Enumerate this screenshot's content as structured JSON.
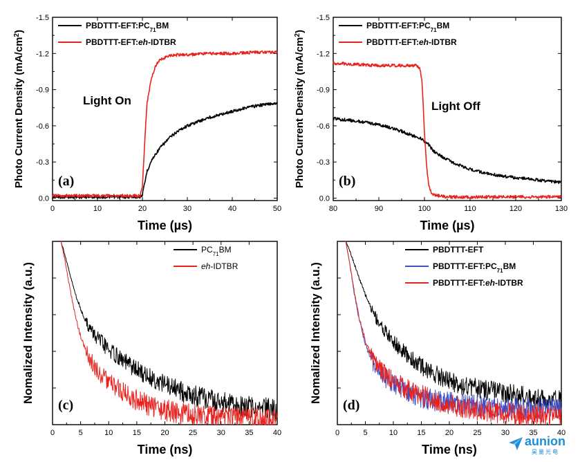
{
  "watermark": {
    "text": "aunion",
    "subtext": "昊量光电",
    "color": "#1d8fd6"
  },
  "colors": {
    "black": "#000000",
    "red": "#e8231f",
    "blue": "#3f4fc6"
  },
  "chart_data": [
    {
      "id": "a",
      "type": "line",
      "panel_label": "(a)",
      "annotation": "Light On",
      "xlabel": "Time (µs)",
      "ylabel": "Photo Current Density (mA/cm²)",
      "xlim": [
        0,
        50
      ],
      "ylim": [
        0.02,
        -1.5
      ],
      "y_inverted": true,
      "xticks": [
        0,
        10,
        20,
        30,
        40,
        50
      ],
      "yticks": [
        0.0,
        -0.3,
        -0.6,
        -0.9,
        -1.2,
        -1.5
      ],
      "ytick_labels": [
        "0.0",
        "-0.3",
        "-0.6",
        "-0.9",
        "-1.2",
        "-1.5"
      ],
      "legend_position": "top-left",
      "series": [
        {
          "name_parts": [
            "PBDTTT-EFT:PC",
            "71",
            "BM"
          ],
          "color": "#000000",
          "x": [
            0,
            19.5,
            20,
            20.5,
            21,
            22,
            23,
            24,
            26,
            28,
            30,
            32,
            35,
            38,
            40,
            43,
            46,
            50
          ],
          "y": [
            -0.01,
            -0.01,
            -0.03,
            -0.12,
            -0.22,
            -0.31,
            -0.37,
            -0.42,
            -0.5,
            -0.56,
            -0.6,
            -0.63,
            -0.67,
            -0.7,
            -0.72,
            -0.75,
            -0.77,
            -0.79
          ]
        },
        {
          "name_parts": [
            "PBDTTT-EFT:",
            "eh",
            "-IDTBR"
          ],
          "color": "#e8231f",
          "x": [
            0,
            19.5,
            20,
            20.5,
            21,
            22,
            23,
            24,
            26,
            28,
            30,
            35,
            40,
            45,
            50
          ],
          "y": [
            -0.02,
            -0.02,
            -0.1,
            -0.45,
            -0.78,
            -1.0,
            -1.1,
            -1.15,
            -1.18,
            -1.19,
            -1.19,
            -1.2,
            -1.2,
            -1.21,
            -1.21
          ]
        }
      ]
    },
    {
      "id": "b",
      "type": "line",
      "panel_label": "(b)",
      "annotation": "Light Off",
      "xlabel": "Time (µs)",
      "ylabel": "Photo Current Density (mA/cm²)",
      "xlim": [
        80,
        130
      ],
      "ylim": [
        0.02,
        -1.5
      ],
      "y_inverted": true,
      "xticks": [
        80,
        90,
        100,
        110,
        120,
        130
      ],
      "yticks": [
        0.0,
        -0.3,
        -0.6,
        -0.9,
        -1.2,
        -1.5
      ],
      "ytick_labels": [
        "0.0",
        "-0.3",
        "-0.6",
        "-0.9",
        "-1.2",
        "-1.5"
      ],
      "legend_position": "top-left",
      "series": [
        {
          "name_parts": [
            "PBDTTT-EFT:PC",
            "71",
            "BM"
          ],
          "color": "#000000",
          "x": [
            80,
            85,
            90,
            93,
            96,
            98,
            99.5,
            100,
            100.5,
            101,
            102,
            104,
            106,
            108,
            110,
            113,
            116,
            120,
            125,
            130
          ],
          "y": [
            -0.66,
            -0.64,
            -0.61,
            -0.58,
            -0.54,
            -0.51,
            -0.49,
            -0.46,
            -0.47,
            -0.44,
            -0.39,
            -0.34,
            -0.3,
            -0.27,
            -0.24,
            -0.21,
            -0.19,
            -0.17,
            -0.15,
            -0.13
          ]
        },
        {
          "name_parts": [
            "PBDTTT-EFT:",
            "eh",
            "-IDTBR"
          ],
          "color": "#e8231f",
          "x": [
            80,
            85,
            90,
            95,
            98,
            99,
            99.5,
            100,
            100.5,
            101,
            101.5,
            102,
            103,
            105,
            110,
            120,
            130
          ],
          "y": [
            -1.12,
            -1.11,
            -1.1,
            -1.1,
            -1.1,
            -1.08,
            -0.95,
            -0.55,
            -0.25,
            -0.1,
            -0.05,
            -0.03,
            -0.02,
            -0.01,
            -0.01,
            -0.01,
            -0.01
          ]
        }
      ]
    },
    {
      "id": "c",
      "type": "line",
      "panel_label": "(c)",
      "xlabel": "Time (ns)",
      "ylabel": "Nomalized Intensity (a.u.)",
      "xlim": [
        0,
        40
      ],
      "ylim": [
        0,
        1
      ],
      "yticks_labeled": false,
      "xticks": [
        0,
        5,
        10,
        15,
        20,
        25,
        30,
        35,
        40
      ],
      "legend_position": "top-right",
      "series": [
        {
          "name_parts": [
            "PC",
            "71",
            "BM"
          ],
          "color": "#000000",
          "x": [
            1.5,
            2,
            3,
            4,
            5,
            6,
            7,
            8,
            10,
            12,
            14,
            16,
            18,
            20,
            23,
            26,
            30,
            34,
            38,
            40
          ],
          "y": [
            1.0,
            0.95,
            0.83,
            0.72,
            0.63,
            0.56,
            0.51,
            0.47,
            0.41,
            0.36,
            0.32,
            0.28,
            0.25,
            0.22,
            0.18,
            0.15,
            0.12,
            0.1,
            0.09,
            0.08
          ]
        },
        {
          "name_parts": [
            "",
            "eh",
            "-IDTBR"
          ],
          "color": "#e8231f",
          "x": [
            1.5,
            2,
            3,
            4,
            5,
            6,
            7,
            8,
            10,
            12,
            14,
            16,
            18,
            20,
            23,
            26,
            30,
            34,
            38,
            40
          ],
          "y": [
            1.0,
            0.93,
            0.76,
            0.6,
            0.48,
            0.4,
            0.34,
            0.29,
            0.23,
            0.19,
            0.15,
            0.12,
            0.1,
            0.08,
            0.06,
            0.05,
            0.04,
            0.04,
            0.03,
            0.03
          ]
        }
      ]
    },
    {
      "id": "d",
      "type": "line",
      "panel_label": "(d)",
      "xlabel": "Time (ns)",
      "ylabel": "Nomalized Intensity (a.u.)",
      "xlim": [
        0,
        40
      ],
      "ylim": [
        0,
        1
      ],
      "yticks_labeled": false,
      "xticks": [
        0,
        5,
        10,
        15,
        20,
        25,
        30,
        35,
        40
      ],
      "legend_position": "top-right",
      "series": [
        {
          "name_parts": [
            "PBDTTT-EFT",
            "",
            ""
          ],
          "color": "#000000",
          "x": [
            1.5,
            2,
            3,
            4,
            5,
            6,
            7,
            8,
            10,
            12,
            14,
            16,
            18,
            20,
            23,
            26,
            30,
            34,
            38,
            40
          ],
          "y": [
            1.0,
            0.97,
            0.88,
            0.79,
            0.71,
            0.64,
            0.58,
            0.53,
            0.45,
            0.39,
            0.34,
            0.3,
            0.27,
            0.24,
            0.21,
            0.19,
            0.17,
            0.15,
            0.14,
            0.13
          ]
        },
        {
          "name_parts": [
            "PBDTTT-EFT:PC",
            "71",
            "BM"
          ],
          "color": "#3f4fc6",
          "x": [
            1.5,
            2,
            3,
            4,
            5,
            6,
            7,
            8,
            10,
            12,
            14,
            16,
            18,
            20,
            23,
            26,
            30,
            34,
            38,
            40
          ],
          "y": [
            1.0,
            0.92,
            0.72,
            0.56,
            0.44,
            0.36,
            0.31,
            0.27,
            0.22,
            0.19,
            0.16,
            0.14,
            0.13,
            0.12,
            0.11,
            0.1,
            0.1,
            0.09,
            0.09,
            0.09
          ]
        },
        {
          "name_parts": [
            "PBDTTT-EFT:",
            "eh",
            "-IDTBR"
          ],
          "color": "#e8231f",
          "x": [
            1.5,
            2,
            3,
            4,
            5,
            6,
            7,
            8,
            10,
            12,
            14,
            16,
            18,
            20,
            23,
            26,
            30,
            34,
            38,
            40
          ],
          "y": [
            1.0,
            0.92,
            0.73,
            0.57,
            0.46,
            0.38,
            0.33,
            0.29,
            0.24,
            0.2,
            0.17,
            0.15,
            0.13,
            0.11,
            0.09,
            0.07,
            0.06,
            0.05,
            0.04,
            0.04
          ]
        }
      ]
    }
  ]
}
